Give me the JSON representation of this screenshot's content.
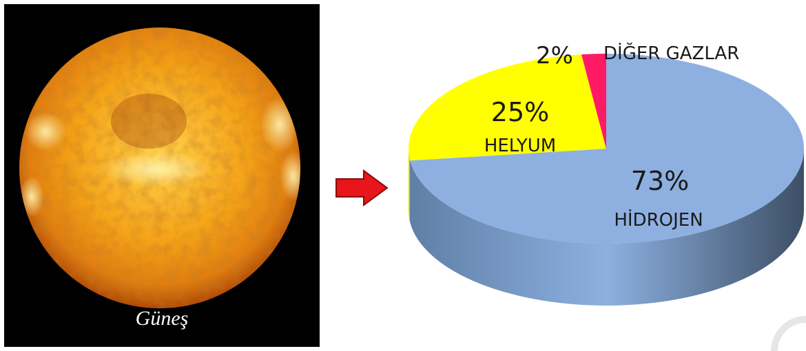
{
  "image": {
    "sun_caption": "Güneş",
    "sun_icon": "sun-photo",
    "arrow_icon": "right-arrow-icon",
    "colors": {
      "arrow_fill": "#e8151b",
      "arrow_stroke": "#8a0a0a",
      "sun_core": "#ffe680",
      "sun_mid": "#f5a418",
      "sun_edge": "#b04a06"
    }
  },
  "chart_data": {
    "type": "pie",
    "title": "",
    "three_d": true,
    "slices": [
      {
        "label": "HİDROJEN",
        "percent_label": "73%",
        "value": 73,
        "color": "#8db0e0",
        "side_color": "#5f7fa6"
      },
      {
        "label": "HELYUM",
        "percent_label": "25%",
        "value": 25,
        "color": "#ffff00",
        "side_color": "#c8c800"
      },
      {
        "label": "DİĞER GAZLAR",
        "percent_label": "2%",
        "value": 2,
        "color": "#ff1a66",
        "side_color": "#b3124a"
      }
    ]
  }
}
